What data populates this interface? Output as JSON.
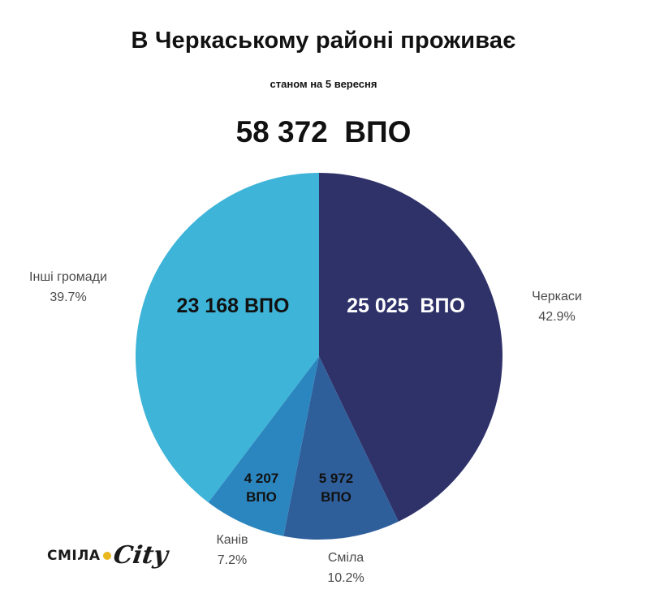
{
  "header": {
    "title": "В Черкаському районі проживає",
    "subtitle": "станом на 5 вересня",
    "total": "58 372  ВПО"
  },
  "logo": {
    "word": "СМІЛА",
    "script": "City"
  },
  "chart_data": {
    "type": "pie",
    "start": "12 o'clock, clockwise",
    "slices": [
      {
        "name": "Черкаси",
        "count": 25025,
        "value_label": "25 025  ВПО",
        "percent": 42.9,
        "percent_label": "42.9%",
        "color": "#2e3269",
        "inner_text_color": "#ffffff"
      },
      {
        "name": "Сміла",
        "count": 5972,
        "value_label": "5 972\nВПО",
        "percent": 10.2,
        "percent_label": "10.2%",
        "color": "#2f5f9b",
        "inner_text_color": "#111111"
      },
      {
        "name": "Канів",
        "count": 4207,
        "value_label": "4 207\nВПО",
        "percent": 7.2,
        "percent_label": "7.2%",
        "color": "#2b86bf",
        "inner_text_color": "#111111"
      },
      {
        "name": "Інші громади",
        "count": 23168,
        "value_label": "23 168 ВПО",
        "percent": 39.7,
        "percent_label": "39.7%",
        "color": "#3eb4d8",
        "inner_text_color": "#111111"
      }
    ]
  }
}
